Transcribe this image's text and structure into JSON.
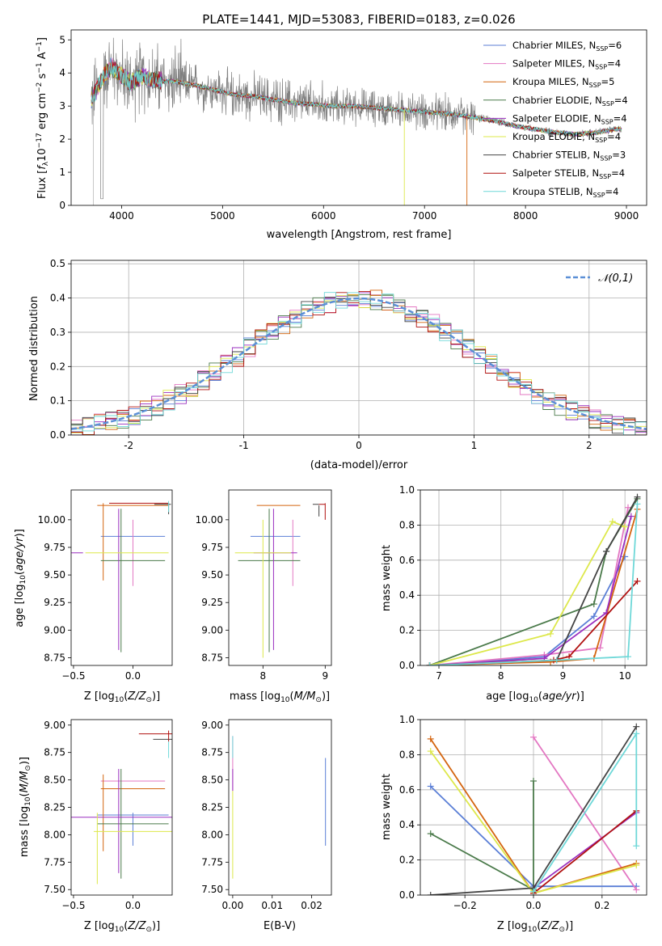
{
  "chart_data": [
    {
      "type": "line",
      "title": "PLATE=1441, MJD=53083, FIBERID=0183, z=0.026",
      "xlabel": "wavelength [Angstrom, rest frame]",
      "ylabel": "Flux [f_λ10^-17 erg cm^-2 s^-1 A^-1]",
      "xlim": [
        3500,
        9200
      ],
      "ylim": [
        0,
        5.3
      ],
      "xticks": [
        4000,
        5000,
        6000,
        7000,
        8000,
        9000
      ],
      "yticks": [
        0,
        1,
        2,
        3,
        4,
        5
      ],
      "legend_position": "top-right",
      "data_color": "#808080",
      "series": [
        {
          "name": "Chabrier MILES, N_SSP=6",
          "color": "#5b7fd6"
        },
        {
          "name": "Salpeter MILES, N_SSP=4",
          "color": "#e377c2"
        },
        {
          "name": "Kroupa MILES, N_SSP=5",
          "color": "#d4650f"
        },
        {
          "name": "Chabrier ELODIE, N_SSP=4",
          "color": "#4a7a4a"
        },
        {
          "name": "Salpeter ELODIE, N_SSP=4",
          "color": "#9a2fbf"
        },
        {
          "name": "Kroupa ELODIE, N_SSP=4",
          "color": "#dde84a"
        },
        {
          "name": "Chabrier STELIB, N_SSP=3",
          "color": "#444444"
        },
        {
          "name": "Salpeter STELIB, N_SSP=4",
          "color": "#b0100f"
        },
        {
          "name": "Kroupa STELIB, N_SSP=4",
          "color": "#6fd8d8"
        }
      ],
      "continuum": {
        "x": [
          3700,
          3800,
          3900,
          4000,
          4100,
          4200,
          4300,
          4400,
          4500,
          4700,
          4900,
          5100,
          5300,
          5500,
          5700,
          5900,
          6100,
          6300,
          6500,
          6700,
          6900,
          7100,
          7300,
          7500,
          7700,
          7900,
          8100,
          8300,
          8500,
          8700,
          8900
        ],
        "y": [
          3.2,
          3.8,
          4.2,
          3.9,
          3.7,
          3.9,
          3.8,
          3.75,
          3.75,
          3.65,
          3.5,
          3.35,
          3.3,
          3.2,
          3.1,
          3.05,
          3.0,
          3.0,
          2.95,
          2.9,
          2.85,
          2.8,
          2.75,
          2.65,
          2.55,
          2.4,
          2.3,
          2.2,
          2.15,
          2.2,
          2.3
        ]
      }
    },
    {
      "type": "bar",
      "xlabel": "(data-model)/error",
      "ylabel": "Normed distribution",
      "xlim": [
        -2.5,
        2.5
      ],
      "ylim": [
        0,
        0.51
      ],
      "xticks": [
        -2,
        -1,
        0,
        1,
        2
      ],
      "yticks": [
        0.0,
        0.1,
        0.2,
        0.3,
        0.4,
        0.5
      ],
      "legend_position": "top-right",
      "gaussian": {
        "name": "𝒩(0,1)",
        "color": "#5b8fd6",
        "mean": 0,
        "sigma": 1
      },
      "bin_width": 0.1
    },
    {
      "type": "scatter",
      "xlabel": "Z [log10(Z/Z⊙)]",
      "ylabel": "age  [log10(age/yr)]",
      "xlim": [
        -0.52,
        0.33
      ],
      "ylim": [
        8.68,
        10.27
      ],
      "xticks": [
        -0.5,
        0.0
      ],
      "yticks": [
        8.75,
        9.0,
        9.25,
        9.5,
        9.75,
        10.0
      ],
      "points": [
        {
          "x": 0.0,
          "y": 9.85,
          "xerr": 0.27,
          "yerr_lo": 0.0,
          "yerr_hi": 0.0,
          "color": "#5b7fd6"
        },
        {
          "x": 0.0,
          "y": 9.7,
          "xerr": 0.0,
          "yerr_lo": 0.3,
          "yerr_hi": 0.3,
          "color": "#e377c2"
        },
        {
          "x": 0.0,
          "y": 10.13,
          "xerr": 0.3,
          "yerr_lo": 0.0,
          "yerr_hi": 0.0,
          "color": "#d4650f"
        },
        {
          "x": 0.0,
          "y": 9.63,
          "xerr": 0.27,
          "yerr_lo": 0.0,
          "yerr_hi": 0.0,
          "color": "#4a7a4a"
        },
        {
          "x": -0.5,
          "y": 9.7,
          "xerr": 0.08,
          "yerr_lo": 0.0,
          "yerr_hi": 0.0,
          "color": "#9a2fbf"
        },
        {
          "x": -0.1,
          "y": 9.7,
          "xerr": 0.4,
          "yerr_lo": 0.9,
          "yerr_hi": 0.4,
          "color": "#dde84a"
        },
        {
          "x": 0.3,
          "y": 10.15,
          "xerr": 0.02,
          "yerr_lo": 0.05,
          "yerr_hi": 0.02,
          "color": "#444444"
        },
        {
          "x": 0.3,
          "y": 10.15,
          "xerr": 0.02,
          "yerr_lo": 0.05,
          "yerr_hi": 0.02,
          "color": "#b0100f"
        },
        {
          "x": 0.3,
          "y": 10.05,
          "xerr": 0.0,
          "yerr_lo": 0.05,
          "yerr_hi": 0.05,
          "color": "#6fd8d8"
        }
      ]
    },
    {
      "type": "scatter",
      "xlabel": "mass [log10(M/M⊙)]",
      "xlim": [
        7.45,
        9.1
      ],
      "ylim": [
        8.68,
        10.27
      ],
      "xticks": [
        8,
        9
      ],
      "yticks": [
        8.75,
        9.0,
        9.25,
        9.5,
        9.75,
        10.0
      ]
    },
    {
      "type": "line",
      "xlabel": "age  [log10(age/yr)]",
      "ylabel": "mass weight",
      "xlim": [
        6.7,
        10.35
      ],
      "ylim": [
        0,
        1.0
      ],
      "xticks": [
        7,
        8,
        9,
        10
      ],
      "yticks": [
        0.0,
        0.2,
        0.4,
        0.6,
        0.8,
        1.0
      ],
      "series": [
        {
          "color": "#5b7fd6",
          "x": [
            6.85,
            8.7,
            9.5,
            10.0
          ],
          "y": [
            0.0,
            0.05,
            0.28,
            0.62
          ]
        },
        {
          "color": "#e377c2",
          "x": [
            6.85,
            8.7,
            9.6,
            10.05
          ],
          "y": [
            0.0,
            0.06,
            0.1,
            0.9
          ]
        },
        {
          "color": "#d4650f",
          "x": [
            6.85,
            8.8,
            9.5,
            10.2
          ],
          "y": [
            0.0,
            0.02,
            0.04,
            0.89
          ]
        },
        {
          "color": "#4a7a4a",
          "x": [
            6.85,
            9.5,
            9.7,
            10.2
          ],
          "y": [
            0.0,
            0.35,
            0.65,
            0.95
          ]
        },
        {
          "color": "#9a2fbf",
          "x": [
            6.85,
            8.7,
            9.7,
            10.1
          ],
          "y": [
            0.0,
            0.04,
            0.3,
            0.85
          ]
        },
        {
          "color": "#dde84a",
          "x": [
            6.85,
            8.8,
            9.8,
            10.0
          ],
          "y": [
            0.0,
            0.18,
            0.82,
            0.79
          ]
        },
        {
          "color": "#444444",
          "x": [
            6.85,
            8.9,
            9.7,
            10.2
          ],
          "y": [
            0.0,
            0.03,
            0.65,
            0.96
          ]
        },
        {
          "color": "#b0100f",
          "x": [
            6.85,
            8.85,
            9.1,
            10.2
          ],
          "y": [
            0.0,
            0.03,
            0.05,
            0.48
          ]
        },
        {
          "color": "#6fd8d8",
          "x": [
            6.85,
            8.9,
            10.05,
            10.2
          ],
          "y": [
            0.0,
            0.03,
            0.05,
            0.92
          ]
        }
      ]
    },
    {
      "type": "scatter",
      "xlabel": "Z [log10(Z/Z⊙)]",
      "ylabel": "mass [log10(M/M⊙)]",
      "xlim": [
        -0.52,
        0.33
      ],
      "ylim": [
        7.45,
        9.05
      ],
      "xticks": [
        -0.5,
        0.0
      ],
      "yticks": [
        7.5,
        7.75,
        8.0,
        8.25,
        8.5,
        8.75,
        9.0
      ]
    },
    {
      "type": "scatter",
      "xlabel": "E(B-V)",
      "xlim": [
        -0.001,
        0.025
      ],
      "ylim": [
        7.45,
        9.05
      ],
      "xticks": [
        0.0,
        0.01,
        0.02
      ],
      "yticks": [
        7.5,
        7.75,
        8.0,
        8.25,
        8.5,
        8.75,
        9.0
      ]
    },
    {
      "type": "line",
      "xlabel": "Z [log10(Z/Z⊙)]",
      "ylabel": "mass weight",
      "xlim": [
        -0.33,
        0.33
      ],
      "ylim": [
        0,
        1.0
      ],
      "xticks": [
        -0.2,
        0.0,
        0.2
      ],
      "yticks": [
        0.0,
        0.2,
        0.4,
        0.6,
        0.8,
        1.0
      ],
      "series": [
        {
          "color": "#5b7fd6",
          "x": [
            -0.3,
            0.0,
            0.3
          ],
          "y": [
            0.62,
            0.05,
            0.05
          ]
        },
        {
          "color": "#e377c2",
          "x": [
            0.0,
            0.3
          ],
          "y": [
            0.9,
            0.03
          ]
        },
        {
          "color": "#d4650f",
          "x": [
            -0.3,
            0.0,
            0.3
          ],
          "y": [
            0.89,
            0.01,
            0.18
          ]
        },
        {
          "color": "#4a7a4a",
          "x": [
            -0.3,
            0.0,
            0.0
          ],
          "y": [
            0.35,
            0.03,
            0.65
          ]
        },
        {
          "color": "#9a2fbf",
          "x": [
            0.0,
            0.3
          ],
          "y": [
            0.04,
            0.47
          ]
        },
        {
          "color": "#dde84a",
          "x": [
            -0.3,
            0.0,
            0.3
          ],
          "y": [
            0.82,
            0.01,
            0.17
          ]
        },
        {
          "color": "#444444",
          "x": [
            -0.3,
            0.0,
            0.3
          ],
          "y": [
            0.0,
            0.04,
            0.96
          ]
        },
        {
          "color": "#b0100f",
          "x": [
            0.0,
            0.3
          ],
          "y": [
            0.01,
            0.48
          ]
        },
        {
          "color": "#6fd8d8",
          "x": [
            0.0,
            0.3,
            0.3
          ],
          "y": [
            0.02,
            0.92,
            0.28
          ]
        }
      ]
    }
  ]
}
